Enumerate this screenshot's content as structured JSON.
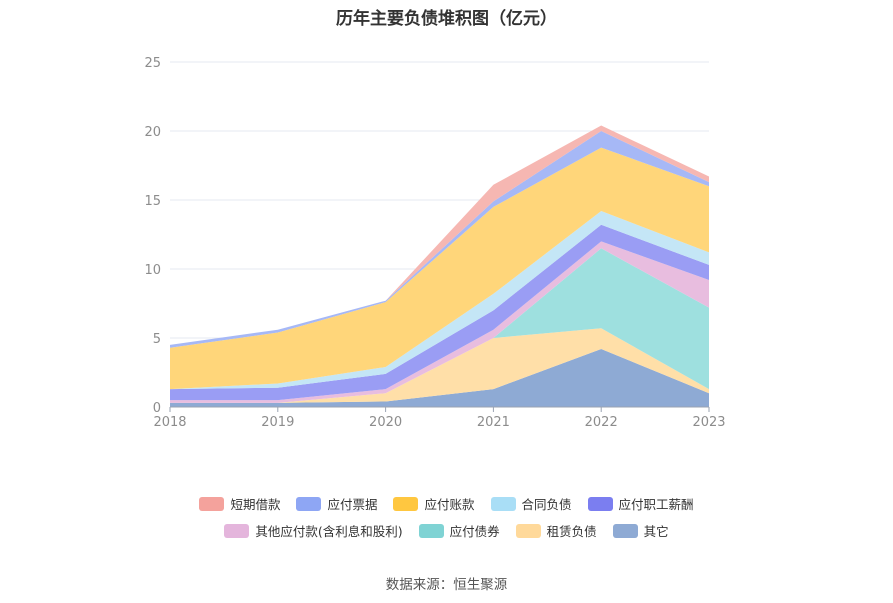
{
  "title": "历年主要负债堆积图（亿元）",
  "source": "数据来源：恒生聚源",
  "legend_rows": [
    [
      "短期借款",
      "应付票据",
      "应付账款",
      "合同负债",
      "应付职工薪酬"
    ],
    [
      "其他应付款(含利息和股利)",
      "应付债券",
      "租赁负债",
      "其它"
    ]
  ],
  "chart_data": {
    "type": "area",
    "stacked": true,
    "x": [
      "2018",
      "2019",
      "2020",
      "2021",
      "2022",
      "2023"
    ],
    "ylim": [
      0,
      25
    ],
    "yticks": [
      0,
      5,
      10,
      15,
      20,
      25
    ],
    "grid": true,
    "legend_position": "bottom",
    "series": [
      {
        "name": "其它",
        "color": "#8eaad4",
        "values": [
          0.3,
          0.3,
          0.4,
          1.3,
          4.2,
          1.0
        ]
      },
      {
        "name": "租赁负债",
        "color": "#ffdfa8",
        "values": [
          0.0,
          0.0,
          0.6,
          3.7,
          1.5,
          0.3
        ]
      },
      {
        "name": "应付债券",
        "color": "#9ee0df",
        "values": [
          0.0,
          0.0,
          0.0,
          0.0,
          5.8,
          5.9
        ]
      },
      {
        "name": "其他应付款(含利息和股利)",
        "color": "#e8bddf",
        "values": [
          0.2,
          0.2,
          0.3,
          0.6,
          0.5,
          2.0
        ]
      },
      {
        "name": "应付职工薪酬",
        "color": "#9a9df4",
        "values": [
          0.8,
          0.9,
          1.1,
          1.4,
          1.2,
          1.1
        ]
      },
      {
        "name": "合同负债",
        "color": "#c4e6f6",
        "values": [
          0.0,
          0.3,
          0.5,
          1.2,
          1.0,
          0.9
        ]
      },
      {
        "name": "应付账款",
        "color": "#ffd67a",
        "values": [
          3.0,
          3.7,
          4.7,
          6.3,
          4.6,
          4.8
        ]
      },
      {
        "name": "应付票据",
        "color": "#a6b8f6",
        "values": [
          0.2,
          0.2,
          0.1,
          0.4,
          1.2,
          0.3
        ]
      },
      {
        "name": "短期借款",
        "color": "#f6b7b2",
        "values": [
          0.0,
          0.0,
          0.0,
          1.2,
          0.4,
          0.4
        ]
      }
    ]
  },
  "legend_colors": {
    "短期借款": "#f4a29c",
    "应付票据": "#8ea6f4",
    "应付账款": "#ffc740",
    "合同负债": "#a9def6",
    "应付职工薪酬": "#7b7ef0",
    "其他应付款(含利息和股利)": "#e4b5dc",
    "应付债券": "#7fd3d4",
    "租赁负债": "#ffd99a",
    "其它": "#8eaad4"
  }
}
